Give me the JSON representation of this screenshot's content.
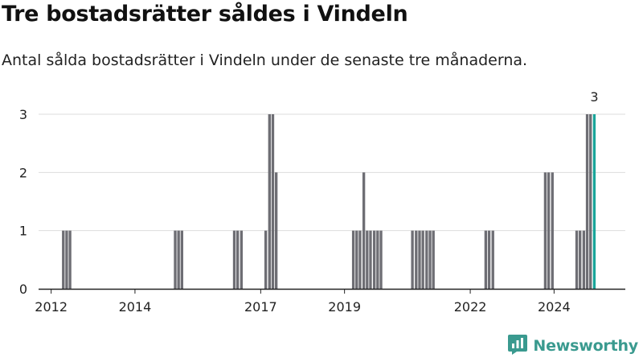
{
  "header": {
    "title": "Tre bostadsrätter såldes i Vindeln",
    "subtitle": "Antal sålda bostadsrätter i Vindeln under de senaste tre månaderna."
  },
  "brand": {
    "name": "Newsworthy",
    "logo_icon": "newsworthy-logo-icon",
    "color": "#3a9a8f"
  },
  "colors": {
    "bar": "#6e6e74",
    "highlight": "#1aa59a",
    "grid": "#dddddd",
    "axis": "#222222"
  },
  "chart_data": {
    "type": "bar",
    "title": "Tre bostadsrätter såldes i Vindeln",
    "subtitle": "Antal sålda bostadsrätter i Vindeln under de senaste tre månaderna.",
    "xlabel": "",
    "ylabel": "",
    "ylim": [
      0,
      3
    ],
    "yticks": [
      0,
      1,
      2,
      3
    ],
    "xlim": [
      2011.7,
      2025.7
    ],
    "xticks": [
      2012,
      2014,
      2017,
      2019,
      2022,
      2024
    ],
    "grid": true,
    "legend": "none",
    "bar_width_years": 0.0833,
    "bars": [
      {
        "x": 2012.29,
        "value": 1
      },
      {
        "x": 2012.37,
        "value": 1
      },
      {
        "x": 2012.45,
        "value": 1
      },
      {
        "x": 2014.96,
        "value": 1
      },
      {
        "x": 2015.04,
        "value": 1
      },
      {
        "x": 2015.12,
        "value": 1
      },
      {
        "x": 2016.37,
        "value": 1
      },
      {
        "x": 2016.45,
        "value": 1
      },
      {
        "x": 2016.54,
        "value": 1
      },
      {
        "x": 2017.12,
        "value": 1
      },
      {
        "x": 2017.21,
        "value": 3
      },
      {
        "x": 2017.29,
        "value": 3
      },
      {
        "x": 2017.37,
        "value": 2
      },
      {
        "x": 2019.21,
        "value": 1
      },
      {
        "x": 2019.29,
        "value": 1
      },
      {
        "x": 2019.37,
        "value": 1
      },
      {
        "x": 2019.46,
        "value": 2
      },
      {
        "x": 2019.54,
        "value": 1
      },
      {
        "x": 2019.62,
        "value": 1
      },
      {
        "x": 2019.71,
        "value": 1
      },
      {
        "x": 2019.79,
        "value": 1
      },
      {
        "x": 2019.87,
        "value": 1
      },
      {
        "x": 2020.62,
        "value": 1
      },
      {
        "x": 2020.71,
        "value": 1
      },
      {
        "x": 2020.79,
        "value": 1
      },
      {
        "x": 2020.87,
        "value": 1
      },
      {
        "x": 2020.96,
        "value": 1
      },
      {
        "x": 2021.04,
        "value": 1
      },
      {
        "x": 2021.12,
        "value": 1
      },
      {
        "x": 2022.37,
        "value": 1
      },
      {
        "x": 2022.45,
        "value": 1
      },
      {
        "x": 2022.54,
        "value": 1
      },
      {
        "x": 2023.79,
        "value": 2
      },
      {
        "x": 2023.87,
        "value": 2
      },
      {
        "x": 2023.96,
        "value": 2
      },
      {
        "x": 2024.54,
        "value": 1
      },
      {
        "x": 2024.62,
        "value": 1
      },
      {
        "x": 2024.71,
        "value": 1
      },
      {
        "x": 2024.79,
        "value": 3
      },
      {
        "x": 2024.87,
        "value": 3
      },
      {
        "x": 2024.96,
        "value": 3,
        "highlight": true,
        "label": "3"
      }
    ]
  }
}
